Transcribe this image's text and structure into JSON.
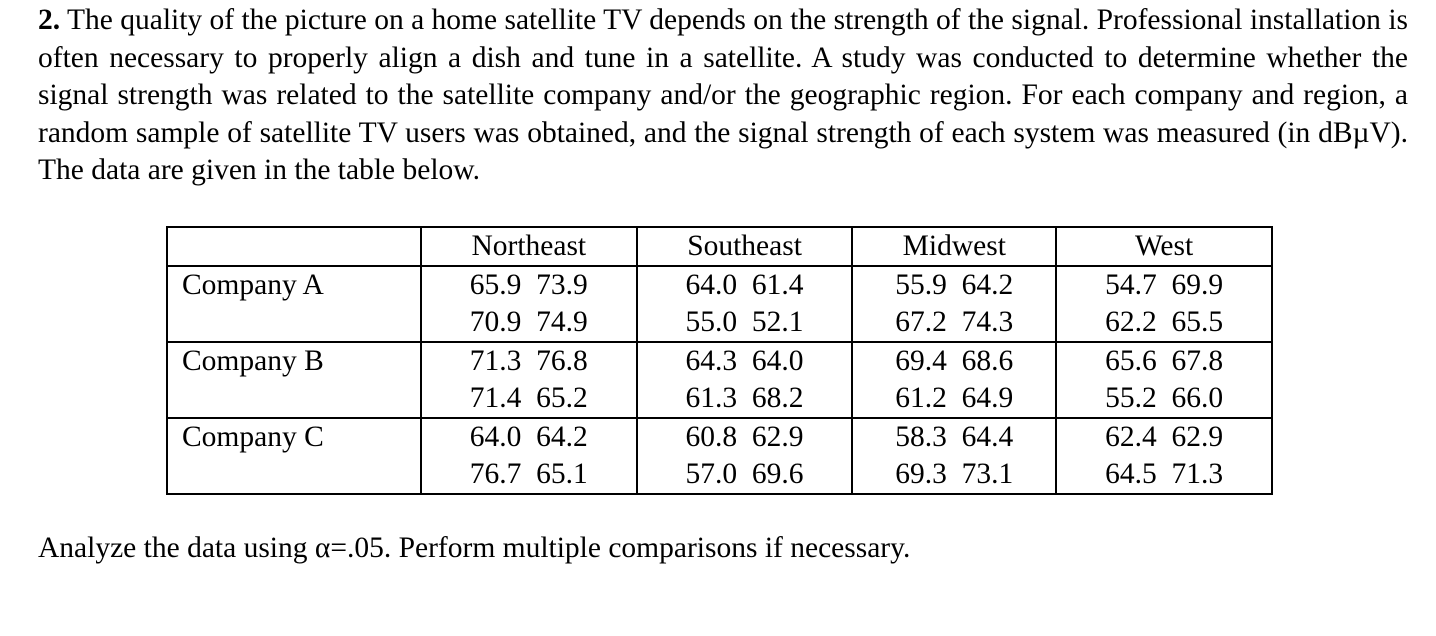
{
  "problem": {
    "number": "2.",
    "text": " The quality of the picture on a home satellite TV depends on the strength of the signal. Professional installation is often necessary to properly align a dish and tune in a satellite. A study was conducted to determine whether the signal strength was related to the satellite company and/or the geographic region. For each company and region, a random sample of satellite TV users was obtained, and the signal strength of each system was measured (in dBµV). The data are given in the table below."
  },
  "table": {
    "corner": "",
    "columns": [
      "Northeast",
      "Southeast",
      "Midwest",
      "West"
    ],
    "rows": [
      {
        "company": "Company A",
        "cells": [
          [
            "65.9  73.9",
            "70.9  74.9"
          ],
          [
            "64.0  61.4",
            "55.0  52.1"
          ],
          [
            "55.9  64.2",
            "67.2  74.3"
          ],
          [
            "54.7  69.9",
            "62.2  65.5"
          ]
        ]
      },
      {
        "company": "Company B",
        "cells": [
          [
            "71.3  76.8",
            "71.4  65.2"
          ],
          [
            "64.3  64.0",
            "61.3  68.2"
          ],
          [
            "69.4  68.6",
            "61.2  64.9"
          ],
          [
            "65.6  67.8",
            "55.2  66.0"
          ]
        ]
      },
      {
        "company": "Company C",
        "cells": [
          [
            "64.0  64.2",
            "76.7  65.1"
          ],
          [
            "60.8  62.9",
            "57.0  69.6"
          ],
          [
            "58.3  64.4",
            "69.3  73.1"
          ],
          [
            "62.4  62.9",
            "64.5  71.3"
          ]
        ]
      }
    ]
  },
  "closing": "Analyze the data using α=.05. Perform multiple comparisons if necessary."
}
